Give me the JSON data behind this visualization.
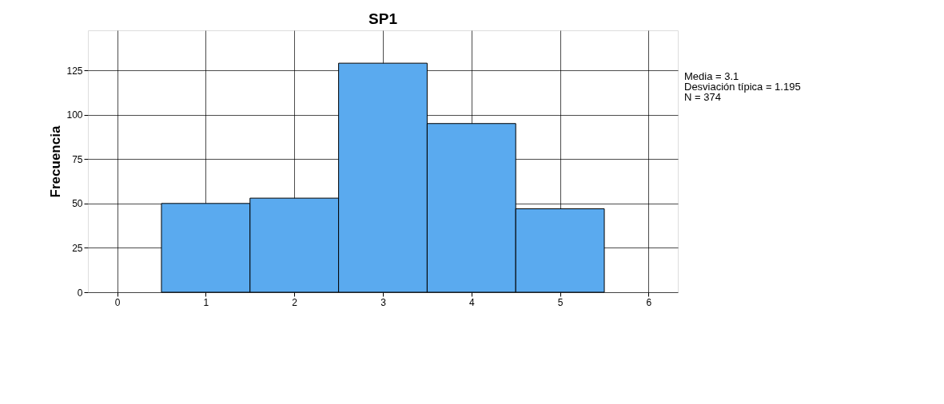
{
  "chart_data": {
    "type": "histogram",
    "title": "SP1",
    "ylabel": "Frecuencia",
    "bins": [
      0.5,
      1.5,
      2.5,
      3.5,
      4.5,
      5.5
    ],
    "values": [
      50,
      53,
      129,
      95,
      47
    ],
    "color": "#5aaaef",
    "xlim": [
      -0.33,
      6.33
    ],
    "xticks": [
      0,
      1,
      2,
      3,
      4,
      5,
      6
    ],
    "ylim": [
      0,
      147.5
    ],
    "yticks": [
      0,
      25,
      50,
      75,
      100,
      125
    ],
    "grid": true,
    "annotations": [
      "Media = 3.1",
      "Desviación típica = 1.195",
      "N = 374"
    ]
  }
}
